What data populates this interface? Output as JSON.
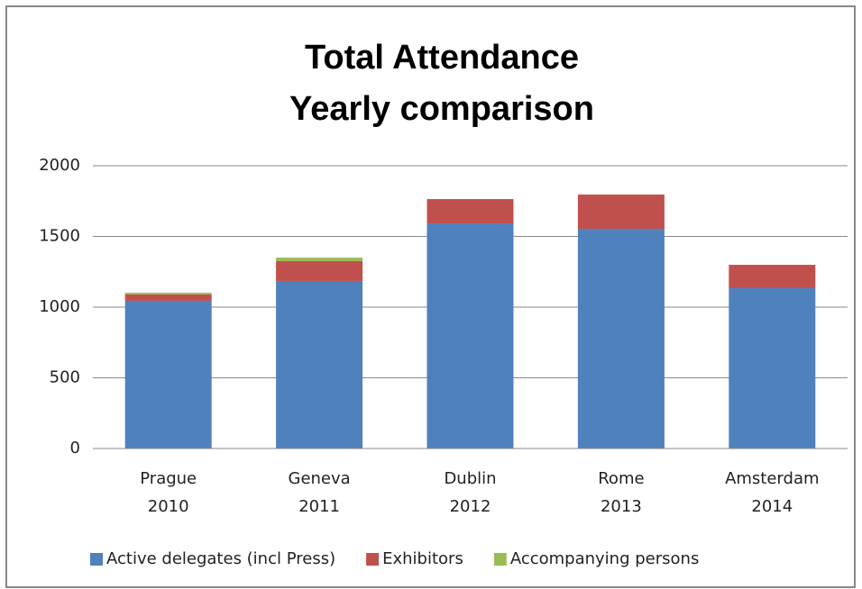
{
  "chart_data": {
    "type": "stacked_bar",
    "title": "Total Attendance",
    "subtitle": "Yearly comparison",
    "categories": [
      "Prague 2010",
      "Geneva 2011",
      "Dublin 2012",
      "Rome 2013",
      "Amsterdam 2014"
    ],
    "series": [
      {
        "name": "Active delegates (incl Press)",
        "color": "#4f81bd",
        "values": [
          1045,
          1185,
          1592,
          1554,
          1134
        ]
      },
      {
        "name": "Exhibitors",
        "color": "#c0504d",
        "values": [
          45,
          140,
          172,
          242,
          165
        ]
      },
      {
        "name": "Accompanying persons",
        "color": "#9bbb59",
        "values": [
          12,
          25,
          0,
          0,
          0
        ]
      }
    ],
    "ylim": [
      0,
      2000
    ],
    "yticks": [
      0,
      500,
      1000,
      1500,
      2000
    ],
    "grid": true,
    "legend": "bottom"
  }
}
